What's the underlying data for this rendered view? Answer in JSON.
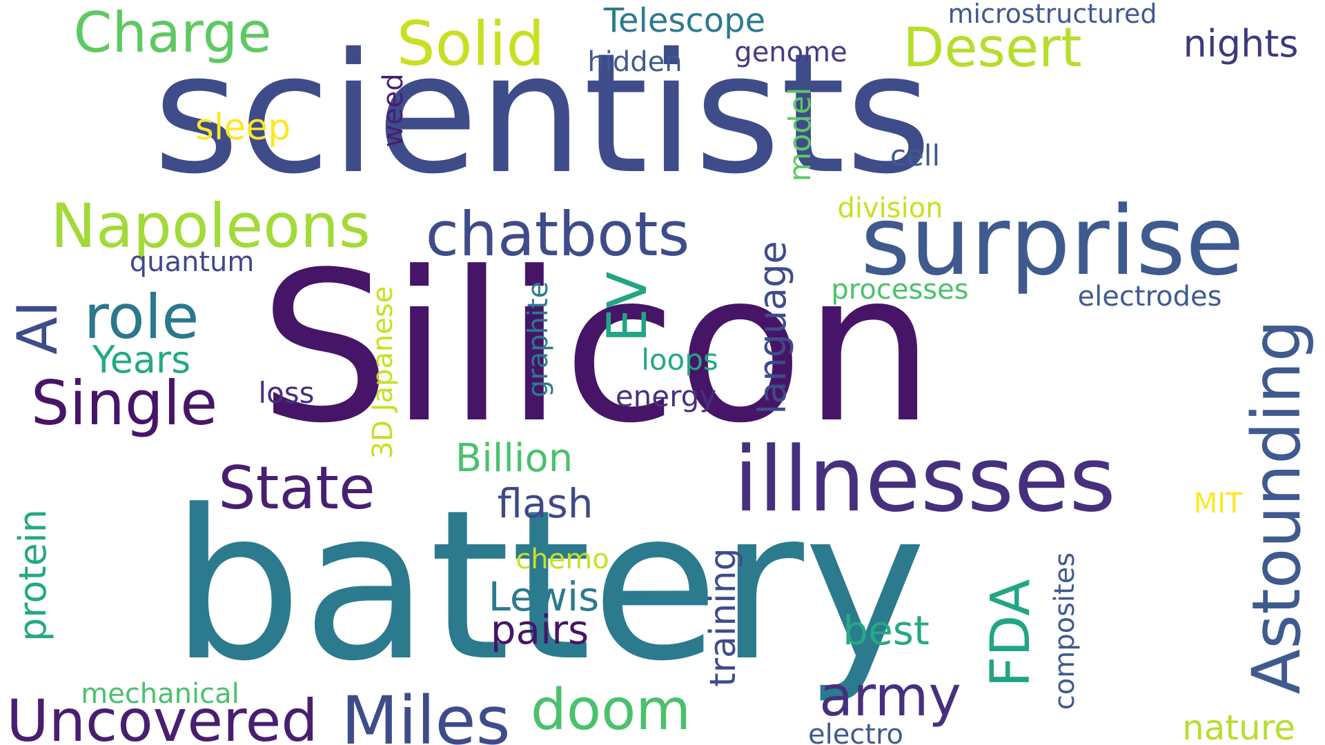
{
  "words": [
    {
      "key": "scientists",
      "text": "scientists",
      "color": "#3e4c8a"
    },
    {
      "key": "silicon",
      "text": "Silicon",
      "color": "#471567"
    },
    {
      "key": "battery",
      "text": "battery",
      "color": "#2c7a8e"
    },
    {
      "key": "surprise",
      "text": "surprise",
      "color": "#3f5a8e"
    },
    {
      "key": "illnesses",
      "text": "illnesses",
      "color": "#46307e"
    },
    {
      "key": "charge",
      "text": "Charge",
      "color": "#5ec962"
    },
    {
      "key": "solid",
      "text": "Solid",
      "color": "#c8e020"
    },
    {
      "key": "telescope",
      "text": "Telescope",
      "color": "#2c7a8e"
    },
    {
      "key": "microstructured",
      "text": "microstructured",
      "color": "#3f5a8e"
    },
    {
      "key": "desert",
      "text": "Desert",
      "color": "#b5de2b"
    },
    {
      "key": "nights",
      "text": "nights",
      "color": "#3b3a7c"
    },
    {
      "key": "hidden",
      "text": "hidden",
      "color": "#3f5a8e"
    },
    {
      "key": "genome",
      "text": "genome",
      "color": "#433c84"
    },
    {
      "key": "sleep",
      "text": "sleep",
      "color": "#fde725"
    },
    {
      "key": "weed",
      "text": "weed",
      "color": "#481f70"
    },
    {
      "key": "model",
      "text": "model",
      "color": "#5ec962"
    },
    {
      "key": "cell",
      "text": "cell",
      "color": "#3f5a8e"
    },
    {
      "key": "napoleons",
      "text": "Napoleons",
      "color": "#a2da37"
    },
    {
      "key": "chatbots",
      "text": "chatbots",
      "color": "#3e4c8a"
    },
    {
      "key": "division",
      "text": "division",
      "color": "#c8e020"
    },
    {
      "key": "quantum",
      "text": "quantum",
      "color": "#3f4889"
    },
    {
      "key": "ai",
      "text": "AI",
      "color": "#3e4c8a"
    },
    {
      "key": "role",
      "text": "role",
      "color": "#2a788e"
    },
    {
      "key": "years",
      "text": "Years",
      "color": "#23a983"
    },
    {
      "key": "ev",
      "text": "EV",
      "color": "#21a585"
    },
    {
      "key": "language",
      "text": "language",
      "color": "#3e4c8a"
    },
    {
      "key": "processes",
      "text": "processes",
      "color": "#4ac16d"
    },
    {
      "key": "electrodes",
      "text": "electrodes",
      "color": "#3f5a8e"
    },
    {
      "key": "astounding",
      "text": "Astounding",
      "color": "#3f5a8e"
    },
    {
      "key": "single",
      "text": "Single",
      "color": "#471567"
    },
    {
      "key": "loss",
      "text": "loss",
      "color": "#46307e"
    },
    {
      "key": "japanese3d",
      "text": "3D Japanese",
      "color": "#c8e020"
    },
    {
      "key": "graphite",
      "text": "graphite",
      "color": "#2c7a8e"
    },
    {
      "key": "loops",
      "text": "loops",
      "color": "#23a983"
    },
    {
      "key": "energy",
      "text": "energy",
      "color": "#46307e"
    },
    {
      "key": "state",
      "text": "State",
      "color": "#481f70"
    },
    {
      "key": "billion",
      "text": "Billion",
      "color": "#4ac16d"
    },
    {
      "key": "flash",
      "text": "flash",
      "color": "#3f4889"
    },
    {
      "key": "mit",
      "text": "MIT",
      "color": "#fde725"
    },
    {
      "key": "protein",
      "text": "protein",
      "color": "#23a983"
    },
    {
      "key": "chemo",
      "text": "chemo",
      "color": "#c8e020"
    },
    {
      "key": "lewis",
      "text": "Lewis",
      "color": "#2c7a8e"
    },
    {
      "key": "pairs",
      "text": "pairs",
      "color": "#471567"
    },
    {
      "key": "training",
      "text": "training",
      "color": "#3e4c8a"
    },
    {
      "key": "fda",
      "text": "FDA",
      "color": "#21a585"
    },
    {
      "key": "best",
      "text": "best",
      "color": "#23a983"
    },
    {
      "key": "composites",
      "text": "composites",
      "color": "#3f5a8e"
    },
    {
      "key": "army",
      "text": "army",
      "color": "#46307e"
    },
    {
      "key": "mechanical",
      "text": "mechanical",
      "color": "#4ac16d"
    },
    {
      "key": "uncovered",
      "text": "Uncovered",
      "color": "#481f70"
    },
    {
      "key": "miles",
      "text": "Miles",
      "color": "#3e4c8a"
    },
    {
      "key": "doom",
      "text": "doom",
      "color": "#4ac16d"
    },
    {
      "key": "electro",
      "text": "electro",
      "color": "#3f5a8e"
    },
    {
      "key": "nature",
      "text": "nature",
      "color": "#b5de2b"
    }
  ]
}
